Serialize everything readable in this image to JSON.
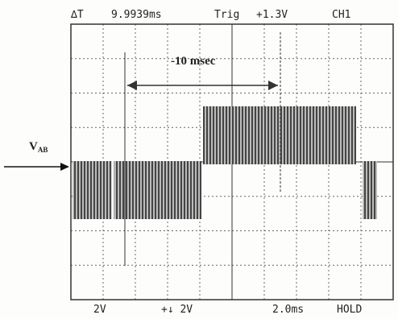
{
  "header": {
    "delta_label": "∆T",
    "delta_value": "9.9939ms",
    "trig_label": "Trig",
    "trig_level": "+1.3V",
    "channel": "CH1"
  },
  "annotation": {
    "interval": "-10 msec",
    "signal": "V",
    "signal_sub": "AB"
  },
  "footer": {
    "ch1_scale": "2V",
    "ch2_scale": "+↓ 2V",
    "time_scale": "2.0ms",
    "mode": "HOLD"
  }
}
